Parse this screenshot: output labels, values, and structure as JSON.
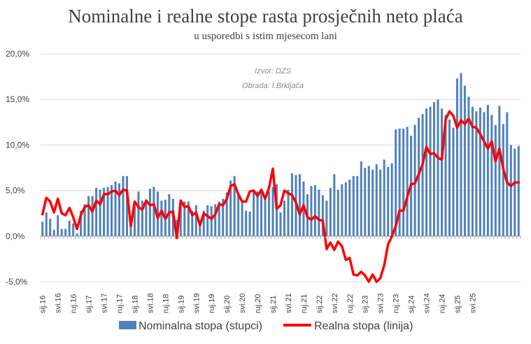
{
  "chart_data": {
    "type": "bar+line",
    "title": "Nominalne i realne stope rasta prosječnih neto plaća",
    "subtitle": "u usporedbi s istim mjesecom lani",
    "source_lines": [
      "Izvor: DZS",
      "Obrada: I.Brkljača"
    ],
    "ylim": [
      -5,
      20
    ],
    "yticks": [
      -5,
      0,
      5,
      10,
      15,
      20
    ],
    "ytick_labels": [
      "-5,0%",
      "0,0%",
      "5,0%",
      "10,0%",
      "15,0%",
      "20,0%"
    ],
    "x_start": "2016-01",
    "xtick_labels": [
      "sij.16",
      "svi.16",
      "ruj.16",
      "sij.17",
      "svi.17",
      "ruj.17",
      "sij.18",
      "svi.18",
      "ruj.18",
      "sij.19",
      "svi.19",
      "ruj.19",
      "sij.20",
      "svi.20",
      "ruj.20",
      "sij.21",
      "svi.21",
      "ruj.21",
      "sij.22",
      "svi.22",
      "ruj.22",
      "sij.23",
      "svi.23",
      "ruj.23",
      "sij.24",
      "svi.24",
      "ruj.24",
      "sij.25",
      "svi.25"
    ],
    "xtick_every": 4,
    "series": [
      {
        "name": "Nominalna stopa (stupci)",
        "kind": "bar",
        "color": "#4f81bd",
        "values": [
          1.6,
          2.6,
          1.9,
          0.7,
          2.3,
          0.8,
          0.8,
          1.7,
          1.4,
          0.3,
          2.8,
          3.5,
          4.4,
          4.4,
          5.3,
          5.1,
          5.3,
          5.4,
          5.6,
          6.0,
          5.8,
          6.6,
          6.6,
          1.8,
          3.3,
          4.9,
          3.9,
          3.6,
          5.2,
          5.4,
          4.9,
          3.9,
          4.0,
          4.6,
          4.1,
          1.8,
          4.0,
          3.8,
          3.8,
          2.8,
          3.4,
          1.5,
          2.8,
          3.4,
          3.3,
          3.5,
          3.8,
          4.1,
          4.8,
          6.1,
          6.6,
          4.6,
          3.9,
          2.8,
          2.7,
          4.8,
          4.9,
          4.8,
          4.2,
          4.9,
          5.4,
          5.7,
          2.6,
          3.9,
          5.1,
          6.9,
          6.7,
          6.8,
          6.0,
          4.6,
          5.5,
          5.6,
          5.1,
          4.5,
          3.9,
          5.3,
          6.8,
          5.1,
          5.7,
          5.9,
          6.2,
          6.6,
          6.6,
          8.2,
          7.5,
          7.7,
          7.3,
          7.9,
          7.3,
          8.4,
          7.6,
          8.0,
          11.7,
          11.8,
          11.8,
          12.0,
          11.0,
          12.2,
          13.0,
          13.4,
          14.0,
          14.2,
          14.7,
          15.0,
          14.0,
          13.3,
          12.8,
          11.9,
          17.3,
          17.9,
          16.5,
          15.3,
          14.2,
          13.7,
          14.1,
          13.6,
          14.4,
          13.3,
          12.2,
          14.3,
          12.3,
          13.6,
          10.0,
          9.6,
          9.9
        ]
      },
      {
        "name": "Realna stopa (linija)",
        "kind": "line",
        "color": "#ff0000",
        "values": [
          2.4,
          4.2,
          3.8,
          2.6,
          4.1,
          2.5,
          2.3,
          3.1,
          2.1,
          0.8,
          2.3,
          3.2,
          3.4,
          2.7,
          3.9,
          3.5,
          4.6,
          4.6,
          4.9,
          5.0,
          4.5,
          5.1,
          5.0,
          1.1,
          3.8,
          3.2,
          2.9,
          3.9,
          3.4,
          3.5,
          2.0,
          2.8,
          1.9,
          2.6,
          2.7,
          -0.2,
          3.9,
          3.2,
          3.3,
          2.3,
          2.6,
          1.2,
          2.5,
          2.2,
          1.9,
          2.4,
          3.5,
          3.4,
          4.1,
          5.5,
          5.7,
          4.6,
          3.8,
          3.8,
          4.9,
          5.0,
          4.4,
          5.1,
          4.1,
          5.3,
          7.4,
          3.0,
          3.4,
          5.0,
          4.7,
          4.5,
          3.7,
          2.4,
          3.4,
          2.1,
          1.8,
          2.2,
          1.8,
          1.7,
          -1.4,
          -0.7,
          -1.5,
          -0.6,
          -1.1,
          -2.6,
          -2.4,
          -4.2,
          -4.3,
          -3.9,
          -4.3,
          -5.0,
          -4.2,
          -5.0,
          -4.6,
          -3.2,
          -0.9,
          0.0,
          1.1,
          2.8,
          2.8,
          4.3,
          5.7,
          5.8,
          6.8,
          7.9,
          9.8,
          9.0,
          9.1,
          8.6,
          8.4,
          12.8,
          13.7,
          13.2,
          11.9,
          12.7,
          12.3,
          12.9,
          12.0,
          11.9,
          11.2,
          10.4,
          9.6,
          10.4,
          8.2,
          9.6,
          7.4,
          5.9,
          5.5,
          5.9,
          5.9
        ]
      }
    ],
    "legend": {
      "placement": "bottom",
      "bar_label": "Nominalna stopa (stupci)",
      "line_label": "Realna stopa (linija)"
    }
  }
}
